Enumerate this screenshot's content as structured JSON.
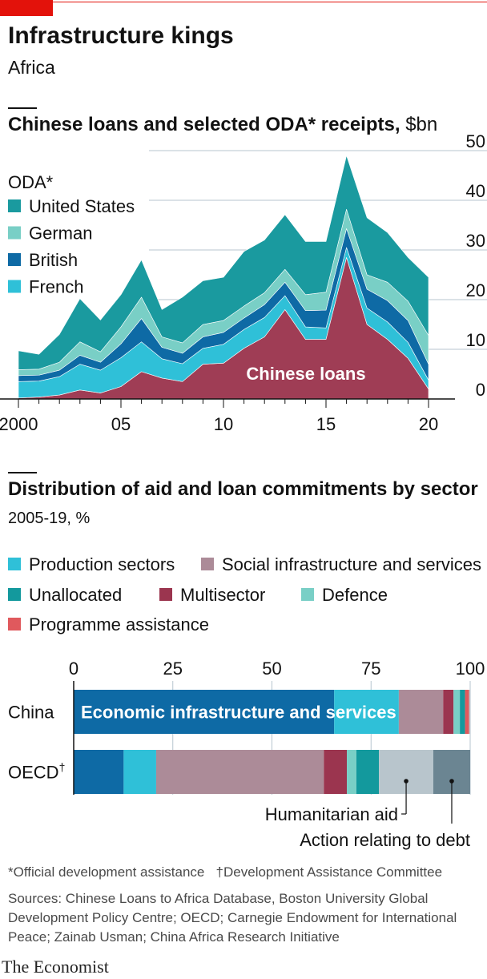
{
  "header": {
    "title": "Infrastructure kings",
    "subtitle": "Africa"
  },
  "colors": {
    "brand_red": "#e3120b",
    "united_states": "#1a9a9f",
    "german": "#79cfc6",
    "british": "#0e6aa5",
    "french": "#2fc0d8",
    "chinese_loans": "#9f3d55"
  },
  "chart_data": [
    {
      "type": "area",
      "stacked": true,
      "title": "Chinese loans and selected ODA* receipts,",
      "unit": "$bn",
      "legend_title": "ODA*",
      "legend_position": "top-left",
      "x": [
        2000,
        2001,
        2002,
        2003,
        2004,
        2005,
        2006,
        2007,
        2008,
        2009,
        2010,
        2011,
        2012,
        2013,
        2014,
        2015,
        2016,
        2017,
        2018,
        2019,
        2020
      ],
      "x_tick_labels": [
        "2000",
        "05",
        "10",
        "15",
        "20"
      ],
      "y_tick_labels": [
        "50",
        "40",
        "30",
        "20",
        "10",
        "0"
      ],
      "ylim": [
        0,
        50
      ],
      "grid": "horizontal",
      "series": [
        {
          "name": "Chinese loans",
          "color": "#9f3d55",
          "values": [
            0.2,
            0.4,
            0.8,
            1.8,
            1.2,
            2.5,
            5.5,
            4.2,
            3.5,
            7.0,
            7.2,
            10.2,
            12.5,
            18.0,
            12.0,
            12.0,
            28.5,
            15.0,
            12.0,
            8.2,
            2.0
          ]
        },
        {
          "name": "French",
          "color": "#2fc0d8",
          "values": [
            3.3,
            3.2,
            3.7,
            5.2,
            4.6,
            5.8,
            6.0,
            3.9,
            3.6,
            3.2,
            3.8,
            3.8,
            3.9,
            2.8,
            2.5,
            2.3,
            2.0,
            3.3,
            3.5,
            3.2,
            1.8
          ]
        },
        {
          "name": "British",
          "color": "#0e6aa5",
          "values": [
            1.2,
            1.2,
            1.3,
            1.8,
            1.6,
            2.8,
            4.7,
            2.3,
            2.1,
            2.3,
            2.4,
            2.3,
            2.6,
            2.7,
            3.3,
            3.6,
            3.8,
            3.8,
            4.3,
            4.4,
            3.2
          ]
        },
        {
          "name": "German",
          "color": "#79cfc6",
          "values": [
            1.2,
            1.2,
            1.6,
            2.7,
            2.1,
            3.4,
            4.3,
            2.1,
            2.1,
            2.5,
            2.4,
            2.4,
            2.4,
            2.6,
            3.2,
            3.6,
            3.9,
            2.9,
            3.7,
            3.9,
            5.8
          ]
        },
        {
          "name": "United States",
          "color": "#1a9a9f",
          "values": [
            3.8,
            3.0,
            5.6,
            8.7,
            6.4,
            6.5,
            7.5,
            5.5,
            9.2,
            8.8,
            8.7,
            11.0,
            10.6,
            11.0,
            10.7,
            10.2,
            10.8,
            11.5,
            10.0,
            8.8,
            11.7
          ]
        }
      ],
      "annotation": "Chinese loans"
    },
    {
      "type": "bar",
      "orientation": "horizontal",
      "stacked": true,
      "title": "Distribution of aid and loan commitments by sector",
      "subtitle": "2005-19, %",
      "categories": [
        "China",
        "OECD"
      ],
      "category_marker": "†",
      "x_tick_labels": [
        "0",
        "25",
        "50",
        "75",
        "100"
      ],
      "xlim": [
        0,
        100
      ],
      "legend_position": "top",
      "legend": [
        {
          "name": "Production sectors",
          "color": "#2fc0d8"
        },
        {
          "name": "Social infrastructure and services",
          "color": "#ac8b98"
        },
        {
          "name": "Unallocated",
          "color": "#13999d"
        },
        {
          "name": "Multisector",
          "color": "#9b354f"
        },
        {
          "name": "Defence",
          "color": "#79cfc6"
        },
        {
          "name": "Programme assistance",
          "color": "#e0595d"
        }
      ],
      "series": [
        {
          "name": "Economic infrastructure and services",
          "color": "#0e6aa5",
          "values": [
            65.7,
            12.6
          ]
        },
        {
          "name": "Production sectors",
          "color": "#2fc0d8",
          "values": [
            16.3,
            8.2
          ]
        },
        {
          "name": "Social infrastructure and services",
          "color": "#ac8b98",
          "values": [
            11.2,
            42.3
          ]
        },
        {
          "name": "Multisector",
          "color": "#9b354f",
          "values": [
            2.6,
            5.8
          ]
        },
        {
          "name": "Defence",
          "color": "#79cfc6",
          "values": [
            1.6,
            2.4
          ]
        },
        {
          "name": "Unallocated",
          "color": "#13999d",
          "values": [
            1.3,
            5.7
          ]
        },
        {
          "name": "Programme assistance",
          "color": "#e0595d",
          "values": [
            1.0,
            0.0
          ]
        },
        {
          "name": "Humanitarian aid",
          "color": "#b8c5cc",
          "values": [
            0.3,
            13.7
          ]
        },
        {
          "name": "Action relating to debt",
          "color": "#6b8592",
          "values": [
            0.0,
            9.3
          ]
        }
      ],
      "bar_label": "Economic infrastructure and services",
      "callouts": [
        "Humanitarian aid",
        "Action relating to debt"
      ]
    }
  ],
  "footnotes": {
    "oda": "*Official development assistance",
    "dac": "†Development Assistance Committee",
    "sources": "Sources: Chinese Loans to Africa Database, Boston University Global Development Policy Centre; OECD; Carnegie Endowment for International Peace; Zainab Usman; China Africa Research Initiative"
  },
  "brand": "The Economist"
}
